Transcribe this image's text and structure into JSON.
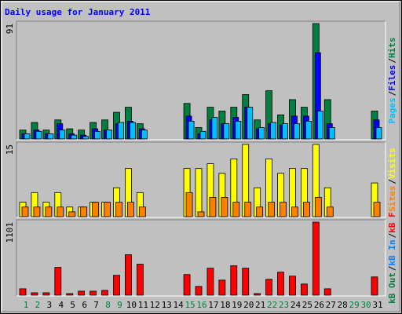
{
  "chart_data": [
    {
      "type": "bar",
      "title": "Daily usage for January 2011",
      "categories": [
        "1",
        "2",
        "3",
        "4",
        "5",
        "6",
        "7",
        "8",
        "9",
        "10",
        "11",
        "12",
        "13",
        "14",
        "15",
        "16",
        "17",
        "18",
        "19",
        "20",
        "21",
        "22",
        "23",
        "24",
        "25",
        "26",
        "27",
        "28",
        "29",
        "30",
        "31"
      ],
      "category_colors": [
        "#008040",
        "#008040",
        "#000000",
        "#000000",
        "#000000",
        "#000000",
        "#000000",
        "#008040",
        "#008040",
        "#000000",
        "#000000",
        "#000000",
        "#000000",
        "#000000",
        "#008040",
        "#008040",
        "#000000",
        "#000000",
        "#000000",
        "#000000",
        "#000000",
        "#008040",
        "#008040",
        "#000000",
        "#000000",
        "#000000",
        "#000000",
        "#000000",
        "#008040",
        "#008040",
        "#000000"
      ],
      "legend_separator": "/",
      "ylim": [
        0,
        91
      ],
      "yticks": [
        91
      ],
      "series": [
        {
          "name": "Hits",
          "color": "#008040",
          "values": [
            7,
            13,
            7,
            15,
            8,
            7,
            13,
            15,
            21,
            25,
            12,
            0,
            0,
            0,
            28,
            9,
            25,
            22,
            25,
            35,
            15,
            38,
            19,
            31,
            25,
            91,
            31,
            0,
            0,
            0,
            22
          ]
        },
        {
          "name": "Files",
          "color": "#0000ff",
          "values": [
            4,
            7,
            4,
            12,
            4,
            3,
            8,
            7,
            12,
            14,
            8,
            0,
            0,
            0,
            18,
            4,
            15,
            12,
            17,
            25,
            8,
            12,
            11,
            18,
            18,
            68,
            12,
            0,
            0,
            0,
            15
          ]
        },
        {
          "name": "Pages",
          "color": "#00c0ff",
          "values": [
            4,
            6,
            4,
            7,
            3,
            2,
            6,
            7,
            13,
            13,
            7,
            0,
            0,
            0,
            14,
            6,
            17,
            12,
            14,
            25,
            9,
            13,
            12,
            12,
            14,
            22,
            9,
            0,
            0,
            0,
            9
          ]
        }
      ]
    },
    {
      "type": "bar",
      "ylim": [
        0,
        15
      ],
      "yticks": [
        15
      ],
      "series": [
        {
          "name": "Visits",
          "color": "#ffff00",
          "values": [
            3,
            5,
            3,
            5,
            2,
            2,
            3,
            3,
            6,
            10,
            5,
            0,
            0,
            0,
            10,
            10,
            11,
            9,
            12,
            15,
            6,
            12,
            9,
            10,
            10,
            15,
            6,
            0,
            0,
            0,
            7
          ]
        },
        {
          "name": "Sites",
          "color": "#ff8000",
          "values": [
            2,
            2,
            2,
            2,
            1,
            2,
            3,
            3,
            3,
            3,
            2,
            0,
            0,
            0,
            5,
            1,
            4,
            4,
            3,
            3,
            2,
            3,
            3,
            2,
            3,
            4,
            2,
            0,
            0,
            0,
            3
          ]
        }
      ]
    },
    {
      "type": "bar",
      "ylim": [
        0,
        1101
      ],
      "yticks": [
        1101
      ],
      "series": [
        {
          "name": "kB F",
          "color": "#ff0000",
          "values": [
            96,
            36,
            36,
            419,
            24,
            60,
            60,
            72,
            299,
            610,
            467,
            0,
            0,
            0,
            311,
            132,
            407,
            227,
            443,
            407,
            24,
            239,
            347,
            287,
            168,
            1101,
            96,
            0,
            0,
            0,
            275
          ]
        },
        {
          "name": "kB In",
          "color": "#0080ff",
          "values": [
            0,
            0,
            0,
            0,
            0,
            0,
            0,
            0,
            0,
            0,
            0,
            0,
            0,
            0,
            0,
            0,
            0,
            0,
            0,
            0,
            0,
            0,
            0,
            0,
            0,
            0,
            0,
            0,
            0,
            0,
            0
          ]
        },
        {
          "name": "kB Out",
          "color": "#008040",
          "values": [
            0,
            0,
            0,
            0,
            0,
            0,
            0,
            0,
            0,
            0,
            0,
            0,
            0,
            0,
            0,
            0,
            0,
            0,
            0,
            0,
            0,
            0,
            0,
            0,
            0,
            0,
            0,
            0,
            0,
            0,
            0
          ]
        }
      ]
    }
  ]
}
